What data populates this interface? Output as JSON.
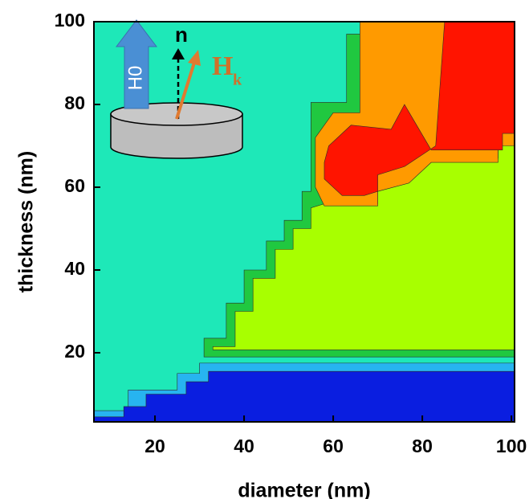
{
  "chart_data": {
    "type": "contour",
    "x_label": "diameter (nm)",
    "y_label": "thickness (nm)",
    "xlim": [
      6.3,
      100.7
    ],
    "ylim": [
      3.3,
      100
    ],
    "xticks": [
      20,
      40,
      60,
      80,
      100
    ],
    "yticks": [
      20,
      40,
      60,
      80,
      100
    ],
    "background": "#1ee8b8",
    "regions": [
      {
        "color": "#27b4f0",
        "x": [
          6.3,
          14,
          14,
          25,
          25,
          30,
          30,
          100.7,
          100.7,
          6.3
        ],
        "y": [
          6,
          6,
          11,
          11,
          15,
          15,
          17.5,
          17.5,
          3.3,
          3.3
        ]
      },
      {
        "color": "#0a1ee0",
        "x": [
          6.3,
          13,
          13,
          18,
          18,
          27,
          27,
          32,
          32,
          100.7,
          100.7,
          6.3
        ],
        "y": [
          4.5,
          4.5,
          7,
          7,
          10,
          10,
          13,
          13,
          15.5,
          15.5,
          3.3,
          3.3
        ]
      },
      {
        "color": "#20c840",
        "x": [
          31,
          31,
          36,
          36,
          40,
          40,
          45,
          45,
          49,
          49,
          53,
          53,
          55,
          55,
          63,
          63,
          68,
          68,
          100.7,
          100.7
        ],
        "y": [
          19,
          23.5,
          23.5,
          32,
          32,
          40,
          40,
          47,
          47,
          52,
          52,
          59,
          59,
          80.5,
          80.5,
          97,
          97,
          100,
          100,
          19
        ]
      },
      {
        "color": "#a8ff00",
        "x": [
          33,
          33,
          38,
          38,
          42,
          42,
          47,
          47,
          51,
          51,
          55,
          55,
          58,
          70,
          70,
          77,
          82,
          97,
          97,
          100.7,
          100.7
        ],
        "y": [
          20.7,
          21.5,
          21.5,
          30,
          30,
          38,
          38,
          45,
          45,
          50,
          50,
          55,
          56,
          56,
          60,
          62,
          67,
          67,
          71,
          71,
          20.7
        ]
      },
      {
        "color": "#ff9a00",
        "x": [
          67,
          100.7,
          100.7,
          97,
          97,
          82,
          77,
          70,
          70,
          58,
          56,
          56,
          60,
          66,
          66
        ],
        "y": [
          100,
          100,
          70,
          70,
          66,
          66,
          61,
          59,
          55.5,
          55.5,
          60,
          72,
          78,
          78,
          100
        ]
      },
      {
        "color": "#ff1400",
        "x": [
          85,
          100.7,
          100.7,
          98,
          98,
          82,
          76,
          73,
          64,
          59,
          58,
          58,
          62,
          67,
          70,
          70,
          76,
          83,
          85
        ],
        "y": [
          100,
          100,
          73,
          73,
          69,
          69,
          80,
          74,
          75,
          70,
          66,
          62,
          58,
          58,
          59,
          63,
          65,
          70,
          100
        ]
      }
    ],
    "inset_labels": [
      "H0",
      "n",
      "H",
      "k"
    ]
  }
}
